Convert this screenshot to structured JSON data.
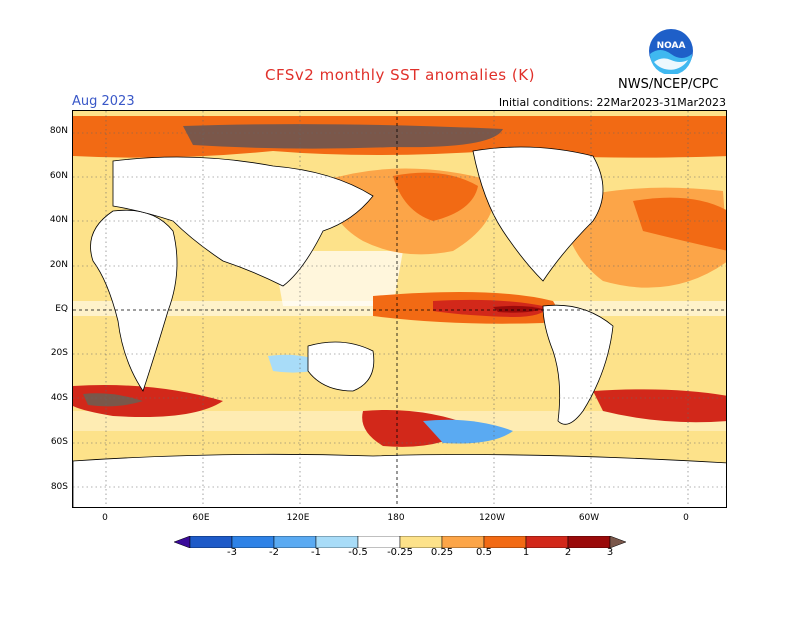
{
  "header": {
    "title": "CFSv2 monthly SST anomalies (K)",
    "month": "Aug 2023",
    "initial_conditions": "Initial conditions: 22Mar2023-31Mar2023",
    "agency": "NWS/NCEP/CPC",
    "logo_text": "NOAA"
  },
  "axes": {
    "lat_labels": [
      "80N",
      "60N",
      "40N",
      "20N",
      "EQ",
      "20S",
      "40S",
      "60S",
      "80S"
    ],
    "lon_labels": [
      "0",
      "60E",
      "120E",
      "180",
      "120W",
      "60W",
      "0"
    ]
  },
  "colorbar": {
    "labels": [
      "-3",
      "-2",
      "-1",
      "-0.5",
      "-0.25",
      "0.25",
      "0.5",
      "1",
      "2",
      "3"
    ],
    "colors": [
      "#3a0a9a",
      "#1e5ac8",
      "#2e82e6",
      "#5aaaf2",
      "#a8dcf8",
      "#ffffff",
      "#fde28a",
      "#fca548",
      "#f26a14",
      "#d2281a",
      "#9a0a0a",
      "#7a574a"
    ]
  },
  "colors": {
    "title": "#e0302a",
    "month": "#3a58c8",
    "land": "#ffffff",
    "ocean_base": "#fde28a"
  }
}
